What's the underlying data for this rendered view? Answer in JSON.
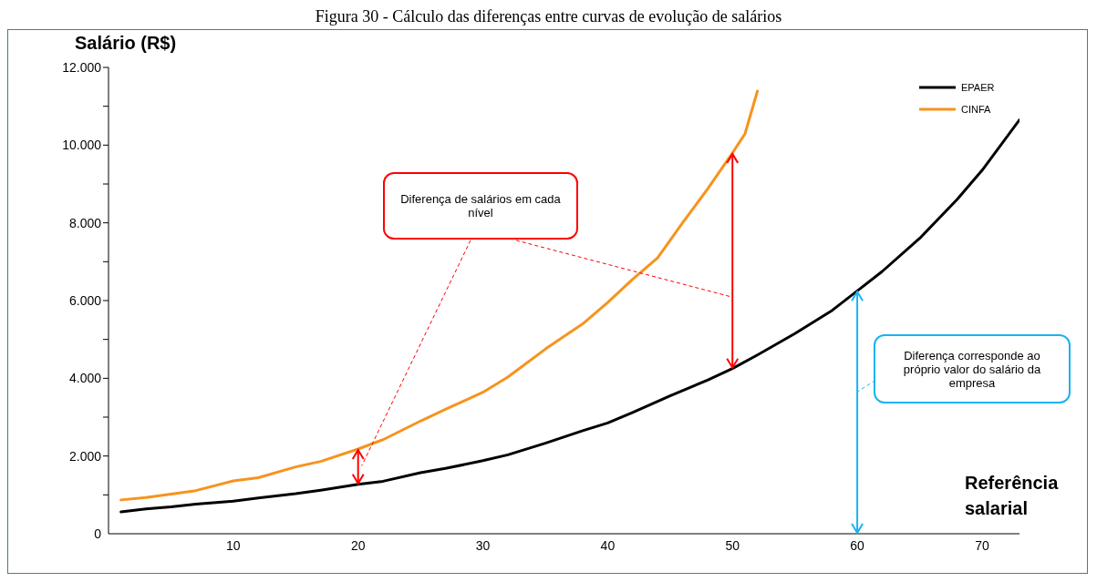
{
  "chart_data": {
    "type": "line",
    "title": "Figura 30 - Cálculo das diferenças entre curvas de evolução de salários",
    "ylabel": "Salário (R$)",
    "xlabel": "Referência salarial",
    "xlim": [
      0,
      73
    ],
    "xticks": [
      10,
      20,
      30,
      40,
      50,
      60,
      70
    ],
    "ylim": [
      0,
      12000
    ],
    "yticks": [
      {
        "value": 0,
        "label": "0"
      },
      {
        "value": 1000,
        "label": null
      },
      {
        "value": 2000,
        "label": "2.000"
      },
      {
        "value": 3000,
        "label": null
      },
      {
        "value": 4000,
        "label": "4.000"
      },
      {
        "value": 5000,
        "label": null
      },
      {
        "value": 6000,
        "label": "6.000"
      },
      {
        "value": 7000,
        "label": null
      },
      {
        "value": 8000,
        "label": "8.000"
      },
      {
        "value": 9000,
        "label": null
      },
      {
        "value": 10000,
        "label": "10.000"
      },
      {
        "value": 11000,
        "label": null
      },
      {
        "value": 12000,
        "label": "12.000"
      }
    ],
    "series": [
      {
        "name": "EPAER",
        "color": "#000000",
        "x": [
          1,
          3,
          5,
          7,
          10,
          12,
          15,
          17,
          20,
          22,
          25,
          27,
          30,
          32,
          35,
          38,
          40,
          42,
          45,
          48,
          50,
          52,
          55,
          58,
          60,
          62,
          65,
          68,
          70,
          73
        ],
        "values": [
          560,
          640,
          690,
          760,
          840,
          920,
          1030,
          1120,
          1270,
          1350,
          1570,
          1680,
          1880,
          2030,
          2330,
          2650,
          2850,
          3120,
          3550,
          3950,
          4250,
          4600,
          5150,
          5750,
          6250,
          6750,
          7600,
          8600,
          9350,
          10650
        ]
      },
      {
        "name": "CINFA",
        "color": "#f7931e",
        "x": [
          1,
          3,
          5,
          7,
          10,
          12,
          15,
          17,
          20,
          22,
          25,
          27,
          30,
          32,
          35,
          38,
          40,
          42,
          44,
          46,
          48,
          50,
          51,
          52
        ],
        "values": [
          870,
          930,
          1020,
          1110,
          1360,
          1440,
          1720,
          1860,
          2180,
          2420,
          2900,
          3200,
          3640,
          4030,
          4750,
          5400,
          5950,
          6550,
          7100,
          8000,
          8870,
          9800,
          10290,
          11390
        ]
      }
    ],
    "annotations": [
      "Diferença de salários em cada nível",
      "Diferença corresponde ao próprio valor do salário da empresa"
    ],
    "legend": "top right",
    "grid": false,
    "marker": "none",
    "line_style": "solid"
  }
}
